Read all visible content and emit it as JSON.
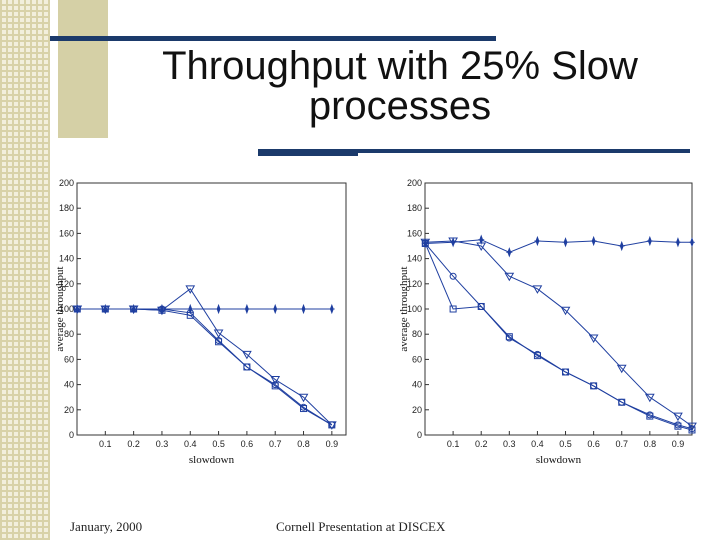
{
  "slide": {
    "title_line1": "Throughput with 25% Slow",
    "title_line2": "processes",
    "footer_left": "January, 2000",
    "footer_center": "Cornell Presentation at DISCEX",
    "accent_color": "#1b3a6b",
    "deco_color": "#d5d0a6"
  },
  "chart_data": [
    {
      "type": "line",
      "title": "",
      "xlabel": "slowdown",
      "ylabel": "average throughput",
      "xlim": [
        0,
        0.95
      ],
      "ylim": [
        0,
        200
      ],
      "xticks": [
        "0.1",
        "0.2",
        "0.3",
        "0.4",
        "0.5",
        "0.6",
        "0.7",
        "0.8",
        "0.9"
      ],
      "yticks": [
        "0",
        "20",
        "40",
        "60",
        "80",
        "100",
        "120",
        "140",
        "160",
        "180",
        "200"
      ],
      "series": [
        {
          "name": "star",
          "marker": "star",
          "x": [
            0.001,
            0.1,
            0.2,
            0.3,
            0.4,
            0.5,
            0.6,
            0.7,
            0.8,
            0.9
          ],
          "y": [
            100,
            100,
            100,
            100,
            100,
            100,
            100,
            100,
            100,
            100
          ]
        },
        {
          "name": "triangle",
          "marker": "triangle",
          "x": [
            0.001,
            0.1,
            0.2,
            0.3,
            0.4,
            0.5,
            0.6,
            0.7,
            0.8,
            0.9
          ],
          "y": [
            100,
            100,
            100,
            99,
            116,
            81,
            64,
            44,
            30,
            8
          ]
        },
        {
          "name": "circle",
          "marker": "circle",
          "x": [
            0.001,
            0.1,
            0.2,
            0.3,
            0.4,
            0.5,
            0.6,
            0.7,
            0.8,
            0.9
          ],
          "y": [
            100,
            100,
            100,
            100,
            97,
            75,
            54,
            40,
            22,
            8
          ]
        },
        {
          "name": "square",
          "marker": "square",
          "x": [
            0.001,
            0.1,
            0.2,
            0.3,
            0.4,
            0.5,
            0.6,
            0.7,
            0.8,
            0.9
          ],
          "y": [
            100,
            100,
            100,
            99,
            95,
            74,
            54,
            39,
            21,
            8
          ]
        }
      ]
    },
    {
      "type": "line",
      "title": "",
      "xlabel": "slowdown",
      "ylabel": "average throughput",
      "xlim": [
        0,
        0.95
      ],
      "ylim": [
        0,
        200
      ],
      "xticks": [
        "0.1",
        "0.2",
        "0.3",
        "0.4",
        "0.5",
        "0.6",
        "0.7",
        "0.8",
        "0.9"
      ],
      "yticks": [
        "0",
        "20",
        "40",
        "60",
        "80",
        "100",
        "120",
        "140",
        "160",
        "180",
        "200"
      ],
      "series": [
        {
          "name": "star",
          "marker": "star",
          "x": [
            0.001,
            0.1,
            0.2,
            0.3,
            0.4,
            0.5,
            0.6,
            0.7,
            0.8,
            0.9,
            0.95
          ],
          "y": [
            152,
            153,
            155,
            145,
            154,
            153,
            154,
            150,
            154,
            153,
            153
          ]
        },
        {
          "name": "triangle",
          "marker": "triangle",
          "x": [
            0.001,
            0.1,
            0.2,
            0.3,
            0.4,
            0.5,
            0.6,
            0.7,
            0.8,
            0.9,
            0.95
          ],
          "y": [
            153,
            154,
            150,
            126,
            116,
            99,
            77,
            53,
            30,
            15,
            7
          ]
        },
        {
          "name": "circle",
          "marker": "circle",
          "x": [
            0.001,
            0.1,
            0.2,
            0.3,
            0.4,
            0.5,
            0.6,
            0.7,
            0.8,
            0.9,
            0.95
          ],
          "y": [
            152,
            126,
            102,
            77,
            64,
            50,
            39,
            26,
            16,
            8,
            5
          ]
        },
        {
          "name": "square",
          "marker": "square",
          "x": [
            0.001,
            0.1,
            0.2,
            0.3,
            0.4,
            0.5,
            0.6,
            0.7,
            0.8,
            0.9,
            0.95
          ],
          "y": [
            152,
            100,
            102,
            78,
            63,
            50,
            39,
            26,
            15,
            7,
            4
          ]
        }
      ]
    }
  ]
}
